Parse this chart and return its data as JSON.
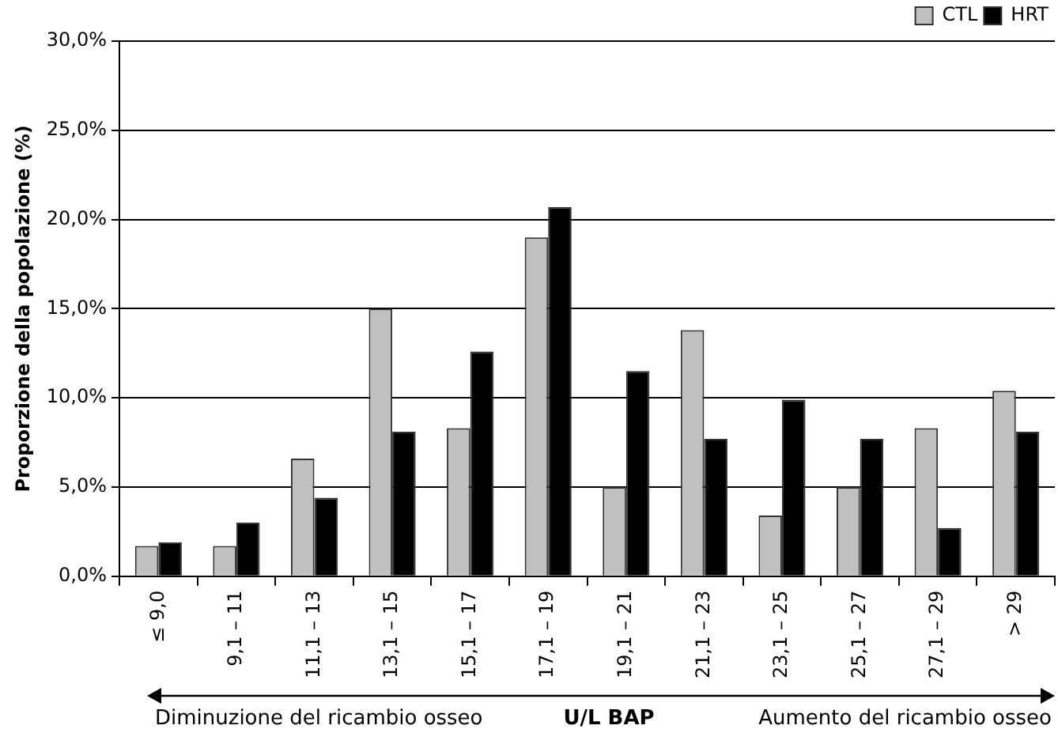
{
  "chart_data": {
    "type": "bar",
    "ylabel": "Proporzione della popolazione (%)",
    "xlabel": "U/L BAP",
    "annotations": [
      "Diminuzione del ricambio osseo",
      "Aumento del ricambio osseo"
    ],
    "categories": [
      "≤ 9,0",
      "9,1 – 11",
      "11,1 – 13",
      "13,1 – 15",
      "15,1 – 17",
      "17,1 – 19",
      "19,1 – 21",
      "21,1 – 23",
      "23,1 – 25",
      "25,1 – 27",
      "27,1 – 29",
      "> 29"
    ],
    "series": [
      {
        "name": "CTL",
        "color": "#c0c0c0",
        "values": [
          1.7,
          1.7,
          6.6,
          15.0,
          8.3,
          19.0,
          5.0,
          13.8,
          3.4,
          5.0,
          8.3,
          10.4
        ]
      },
      {
        "name": "HRT",
        "color": "#000000",
        "values": [
          1.9,
          3.0,
          4.4,
          8.1,
          12.6,
          20.7,
          11.5,
          7.7,
          9.9,
          7.7,
          2.7,
          8.1
        ]
      }
    ],
    "ylim": [
      0,
      30
    ],
    "yticks": [
      {
        "value": 0,
        "label": "0,0%"
      },
      {
        "value": 5,
        "label": "5,0%"
      },
      {
        "value": 10,
        "label": "10,0%"
      },
      {
        "value": 15,
        "label": "15,0%"
      },
      {
        "value": 20,
        "label": "20,0%"
      },
      {
        "value": 25,
        "label": "25,0%"
      },
      {
        "value": 30,
        "label": "30,0%"
      }
    ],
    "grid": "y",
    "legend": "top right"
  }
}
